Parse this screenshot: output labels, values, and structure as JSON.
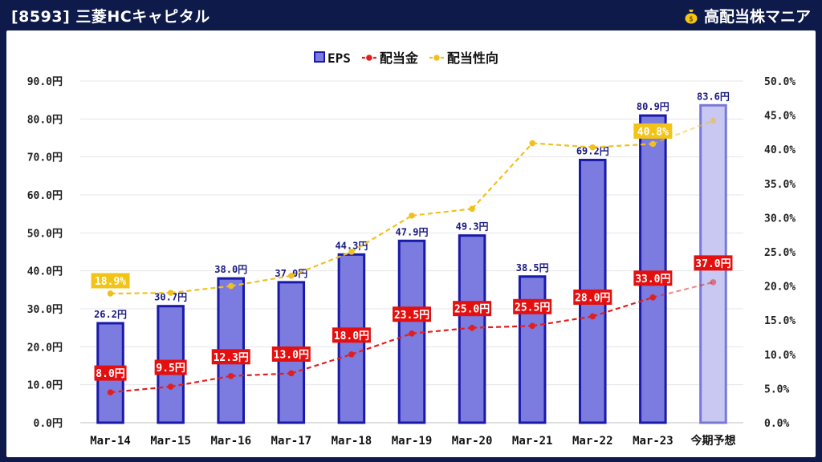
{
  "header": {
    "title": "[8593] 三菱HCキャピタル",
    "brand": "高配当株マニア",
    "brand_icon": "money-bag-icon"
  },
  "chart_data": {
    "type": "bar",
    "categories": [
      "Mar-14",
      "Mar-15",
      "Mar-16",
      "Mar-17",
      "Mar-18",
      "Mar-19",
      "Mar-20",
      "Mar-21",
      "Mar-22",
      "Mar-23",
      "今期予想"
    ],
    "series": [
      {
        "name": "EPS",
        "type": "bar",
        "axis": "left",
        "color": "#7b7be0",
        "border": "#1a1aa8",
        "values": [
          26.2,
          30.7,
          38.0,
          37.0,
          44.3,
          47.9,
          49.3,
          38.5,
          69.2,
          80.9,
          83.6
        ],
        "labels": [
          "26.2円",
          "30.7円",
          "38.0円",
          "37.0円",
          "44.3円",
          "47.9円",
          "49.3円",
          "38.5円",
          "69.2円",
          "80.9円",
          "83.6円"
        ]
      },
      {
        "name": "配当金",
        "type": "line",
        "axis": "left",
        "color": "#e02020",
        "values": [
          8.0,
          9.5,
          12.3,
          13.0,
          18.0,
          23.5,
          25.0,
          25.5,
          28.0,
          33.0,
          37.0
        ],
        "labels": [
          "8.0円",
          "9.5円",
          "12.3円",
          "13.0円",
          "18.0円",
          "23.5円",
          "25.0円",
          "25.5円",
          "28.0円",
          "33.0円",
          "37.0円"
        ]
      },
      {
        "name": "配当性向",
        "type": "line",
        "axis": "right",
        "color": "#f0c020",
        "values": [
          18.9,
          19.0,
          20.0,
          21.5,
          25.0,
          30.3,
          31.3,
          40.9,
          40.3,
          40.8,
          44.2
        ],
        "labels": [
          "18.9%",
          "",
          "",
          "",
          "",
          "",
          "",
          "",
          "",
          "40.8%",
          ""
        ]
      }
    ],
    "y_left": {
      "min": 0,
      "max": 90,
      "step": 10,
      "ticks": [
        "0.0円",
        "10.0円",
        "20.0円",
        "30.0円",
        "40.0円",
        "50.0円",
        "60.0円",
        "70.0円",
        "80.0円",
        "90.0円"
      ]
    },
    "y_right": {
      "min": 0,
      "max": 50,
      "step": 5,
      "ticks": [
        "0.0%",
        "5.0%",
        "10.0%",
        "15.0%",
        "20.0%",
        "25.0%",
        "30.0%",
        "35.0%",
        "40.0%",
        "45.0%",
        "50.0%"
      ]
    },
    "legend_position": "top-center",
    "grid": true,
    "forecast_index": 10
  }
}
